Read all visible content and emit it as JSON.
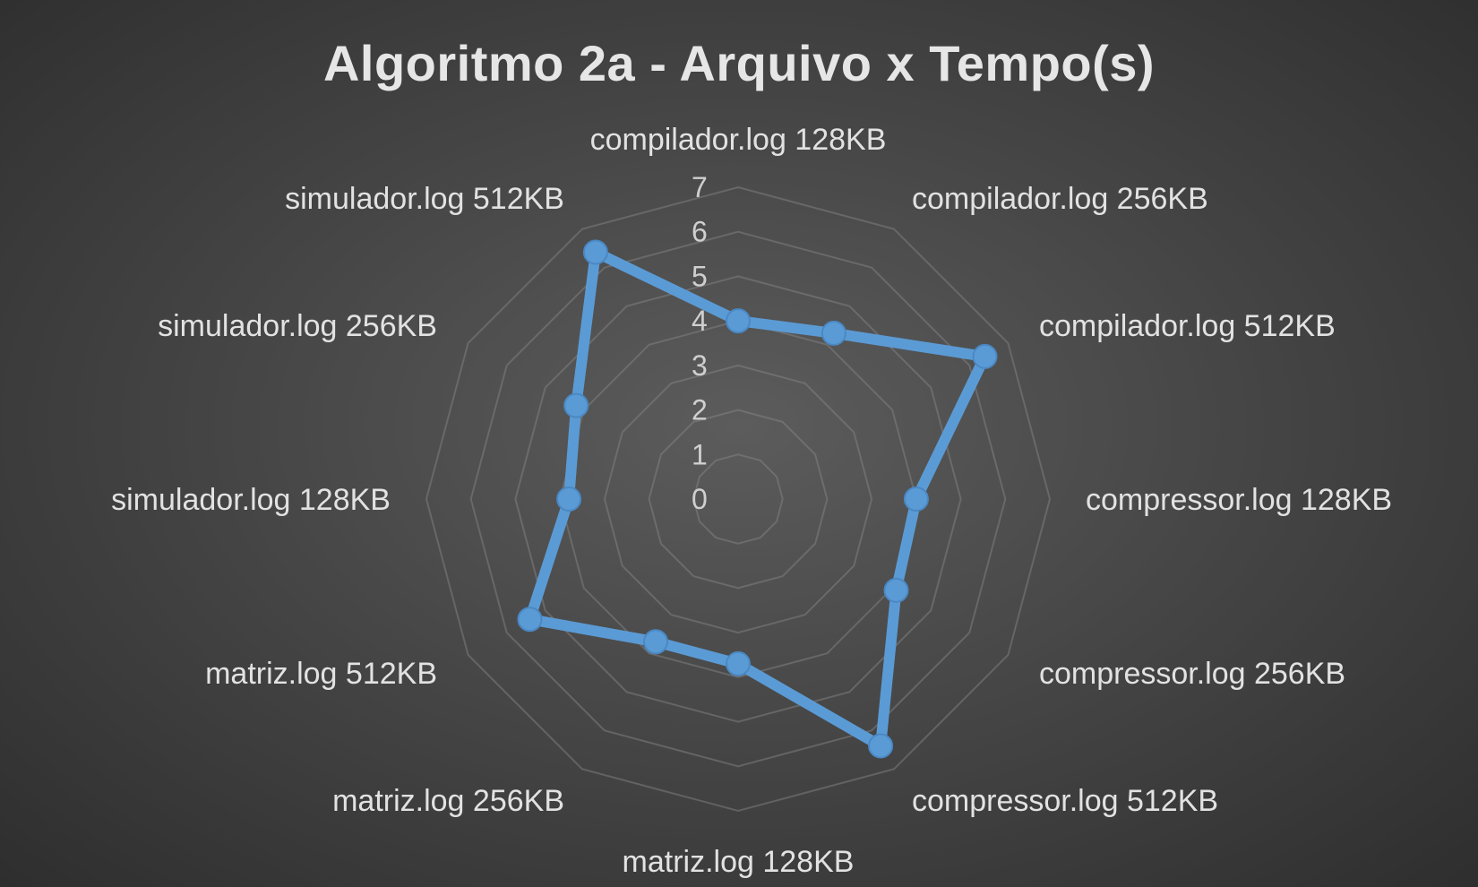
{
  "chart_data": {
    "type": "radar",
    "title": "Algoritmo 2a - Arquivo x Tempo(s)",
    "categories": [
      "compilador.log 128KB",
      "compilador.log 256KB",
      "compilador.log 512KB",
      "compressor.log 128KB",
      "compressor.log 256KB",
      "compressor.log 512KB",
      "matriz.log 128KB",
      "matriz.log 256KB",
      "matriz.log 512KB",
      "simulador.log 128KB",
      "simulador.log 256KB",
      "simulador.log 512KB"
    ],
    "series": [
      {
        "values": [
          4.0,
          4.3,
          6.4,
          4.0,
          4.1,
          6.4,
          3.7,
          3.7,
          5.4,
          3.8,
          4.2,
          6.4
        ]
      }
    ],
    "rlim": [
      0,
      7
    ],
    "ticks": [
      "0",
      "1",
      "2",
      "3",
      "4",
      "5",
      "6",
      "7"
    ],
    "grid": true,
    "colors": {
      "series": "#5b9bd5",
      "grid": "#8a8a8a",
      "text": "#e2e2e2"
    }
  }
}
